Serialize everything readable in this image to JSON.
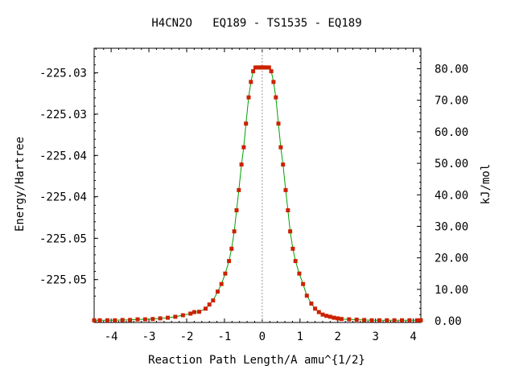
{
  "chart_data": {
    "type": "line",
    "title": "H4CN2O   EQ189 - TS1535 - EQ189",
    "xlabel": "Reaction Path Length/A amu^{1/2}",
    "ylabel_left": "Energy/Hartree",
    "ylabel_right": "kJ/mol",
    "xlim": [
      -4.45,
      4.2
    ],
    "ylim_kjmol": [
      -0.5,
      86.5
    ],
    "x_ticks": [
      -4,
      -3,
      -2,
      -1,
      0,
      1,
      2,
      3,
      4
    ],
    "x_tick_labels": [
      "-4",
      "-3",
      "-2",
      "-1",
      "0",
      "1",
      "2",
      "3",
      "4"
    ],
    "left_ticks_kjmol": [
      13.1,
      26.2,
      39.4,
      52.5,
      65.6,
      78.7
    ],
    "left_tick_labels": [
      "-225.05",
      "-225.05",
      "-225.04",
      "-225.04",
      "-225.03",
      "-225.03"
    ],
    "right_ticks": [
      0,
      10,
      20,
      30,
      40,
      50,
      60,
      70,
      80
    ],
    "right_tick_labels": [
      "0.00",
      "10.00",
      "20.00",
      "30.00",
      "40.00",
      "50.00",
      "60.00",
      "70.00",
      "80.00"
    ],
    "ts_marker_x": 0,
    "colors": {
      "line": "#00a000",
      "points": "#cc2200",
      "frame": "#000000",
      "ts_line": "#999999"
    },
    "series": [
      {
        "x": [
          -4.45,
          -4.3,
          -4.1,
          -3.9,
          -3.7,
          -3.5,
          -3.3,
          -3.1,
          -2.9,
          -2.7,
          -2.5,
          -2.3,
          -2.1,
          -1.9,
          -1.8,
          -1.67,
          -1.5,
          -1.4,
          -1.3,
          -1.18,
          -1.08,
          -0.98,
          -0.88,
          -0.81,
          -0.74,
          -0.68,
          -0.62,
          -0.55,
          -0.49,
          -0.43,
          -0.36,
          -0.3,
          -0.24,
          -0.18,
          -0.12,
          -0.06,
          -0.02,
          0.0,
          0.02,
          0.06,
          0.12,
          0.18,
          0.24,
          0.3,
          0.36,
          0.43,
          0.49,
          0.55,
          0.62,
          0.68,
          0.74,
          0.81,
          0.88,
          0.98,
          1.08,
          1.18,
          1.3,
          1.4,
          1.5,
          1.6,
          1.7,
          1.8,
          1.9,
          2.0,
          2.1,
          2.3,
          2.5,
          2.7,
          2.9,
          3.1,
          3.3,
          3.5,
          3.7,
          3.9,
          4.1,
          4.2
        ],
        "y": [
          0.2,
          0.2,
          0.2,
          0.2,
          0.3,
          0.3,
          0.5,
          0.5,
          0.6,
          0.8,
          1.0,
          1.3,
          1.8,
          2.3,
          2.8,
          2.9,
          3.9,
          5.2,
          6.5,
          9.3,
          11.7,
          15.0,
          19.0,
          22.9,
          28.4,
          35.1,
          41.5,
          49.6,
          55.1,
          62.6,
          70.9,
          75.8,
          79.2,
          80.4,
          80.4,
          80.4,
          80.4,
          80.4,
          80.4,
          80.4,
          80.4,
          80.4,
          79.2,
          75.8,
          70.9,
          62.6,
          55.1,
          49.6,
          41.5,
          35.1,
          28.4,
          22.9,
          19.0,
          15.0,
          11.7,
          8.0,
          5.5,
          3.9,
          2.8,
          2.0,
          1.6,
          1.3,
          1.0,
          0.8,
          0.6,
          0.5,
          0.4,
          0.3,
          0.2,
          0.2,
          0.2,
          0.2,
          0.2,
          0.2,
          0.2,
          0.2
        ]
      }
    ]
  }
}
